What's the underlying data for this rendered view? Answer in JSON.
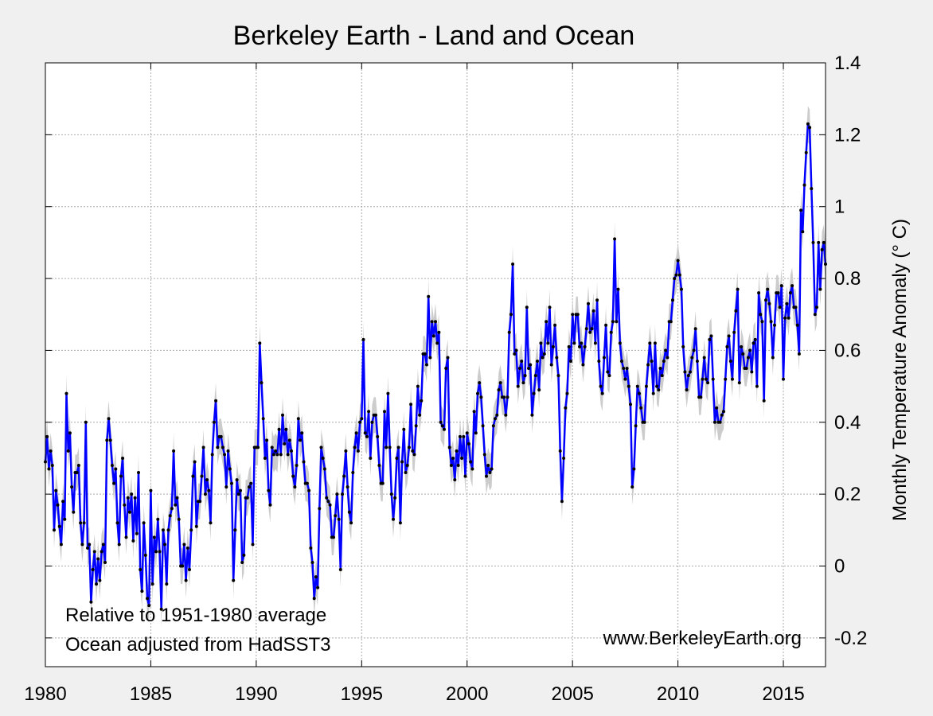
{
  "chart_data": {
    "type": "line",
    "title": "Berkeley Earth - Land and Ocean",
    "xlabel": "",
    "ylabel": "Monthly Temperature Anomaly (° C)",
    "xlim": [
      1980,
      2017
    ],
    "ylim": [
      -0.28,
      1.4
    ],
    "x_ticks": [
      "1980",
      "1985",
      "1990",
      "1995",
      "2000",
      "2005",
      "2010",
      "2015"
    ],
    "y_ticks": [
      "-0.2",
      "0",
      "0.2",
      "0.4",
      "0.6",
      "0.8",
      "1",
      "1.2",
      "1.4"
    ],
    "y_axis_side": "right",
    "grid": true,
    "annotations": [
      "Relative to 1951-1980 average",
      "Ocean adjusted from HadSST3",
      "www.BerkeleyEarth.org"
    ],
    "line_color": "#0000ff",
    "marker_color": "#000000",
    "uncertainty_color": "#cccccc",
    "uncertainty_halfwidth": 0.05,
    "monthly_values_by_year": {
      "1980": [
        0.29,
        0.36,
        0.27,
        0.32,
        0.28,
        0.1,
        0.21,
        0.17,
        0.11,
        0.06,
        0.18,
        0.13
      ],
      "1981": [
        0.48,
        0.32,
        0.37,
        0.22,
        0.15,
        0.26,
        0.26,
        0.28,
        0.12,
        0.06,
        0.12,
        0.4
      ],
      "1982": [
        0.05,
        0.06,
        -0.1,
        -0.01,
        0.04,
        -0.05,
        0.02,
        -0.04,
        0.04,
        0.06,
        0.01,
        0.35
      ],
      "1983": [
        0.41,
        0.35,
        0.28,
        0.23,
        0.27,
        0.12,
        0.06,
        0.25,
        0.3,
        0.17,
        0.08,
        0.19
      ],
      "1984": [
        0.15,
        0.2,
        0.07,
        0.19,
        0.09,
        0.26,
        -0.01,
        -0.07,
        0.12,
        0.03,
        -0.09,
        -0.11
      ],
      "1985": [
        0.21,
        -0.05,
        0.08,
        0.04,
        0.13,
        0.04,
        -0.12,
        0.1,
        0.06,
        -0.05,
        0.1,
        0.14
      ],
      "1986": [
        0.16,
        0.32,
        0.17,
        0.19,
        0.13,
        0.0,
        0.0,
        0.06,
        -0.04,
        0.05,
        -0.01,
        0.1
      ],
      "1987": [
        0.25,
        0.29,
        0.11,
        0.18,
        0.18,
        0.25,
        0.33,
        0.2,
        0.24,
        0.21,
        0.12,
        0.31
      ],
      "1988": [
        0.4,
        0.46,
        0.33,
        0.36,
        0.36,
        0.33,
        0.31,
        0.22,
        0.32,
        0.27,
        0.23,
        -0.04
      ],
      "1989": [
        0.1,
        0.24,
        0.2,
        0.21,
        0.01,
        0.03,
        0.19,
        0.19,
        0.22,
        0.23,
        0.06,
        0.33
      ],
      "1990": [
        0.33,
        0.33,
        0.62,
        0.51,
        0.41,
        0.3,
        0.35,
        0.21,
        0.17,
        0.33,
        0.31,
        0.32
      ],
      "1991": [
        0.31,
        0.38,
        0.31,
        0.42,
        0.34,
        0.38,
        0.31,
        0.35,
        0.32,
        0.25,
        0.22,
        0.28
      ],
      "1992": [
        0.41,
        0.35,
        0.37,
        0.29,
        0.23,
        0.23,
        0.21,
        0.05,
        0.01,
        -0.09,
        -0.03,
        -0.06
      ],
      "1993": [
        0.16,
        0.33,
        0.3,
        0.27,
        0.19,
        0.18,
        0.17,
        0.08,
        0.08,
        0.14,
        0.2,
        0.13
      ],
      "1994": [
        -0.01,
        0.2,
        0.25,
        0.32,
        0.22,
        0.15,
        0.12,
        0.26,
        0.33,
        0.37,
        0.32,
        0.4
      ],
      "1995": [
        0.41,
        0.63,
        0.37,
        0.36,
        0.43,
        0.3,
        0.4,
        0.42,
        0.42,
        0.36,
        0.28,
        0.23
      ],
      "1996": [
        0.23,
        0.43,
        0.33,
        0.48,
        0.33,
        0.2,
        0.13,
        0.19,
        0.3,
        0.33,
        0.12,
        0.29
      ],
      "1997": [
        0.38,
        0.26,
        0.28,
        0.33,
        0.45,
        0.32,
        0.31,
        0.39,
        0.5,
        0.42,
        0.46,
        0.59
      ],
      "1998": [
        0.59,
        0.56,
        0.75,
        0.58,
        0.68,
        0.64,
        0.68,
        0.62,
        0.65,
        0.4,
        0.39,
        0.38
      ],
      "1999": [
        0.55,
        0.58,
        0.33,
        0.28,
        0.3,
        0.24,
        0.32,
        0.28,
        0.36,
        0.3,
        0.36,
        0.25
      ],
      "2000": [
        0.37,
        0.34,
        0.29,
        0.27,
        0.43,
        0.37,
        0.48,
        0.51,
        0.47,
        0.39,
        0.31,
        0.25
      ],
      "2001": [
        0.28,
        0.26,
        0.27,
        0.39,
        0.41,
        0.42,
        0.49,
        0.51,
        0.47,
        0.47,
        0.42,
        0.47
      ],
      "2002": [
        0.65,
        0.7,
        0.84,
        0.59,
        0.6,
        0.5,
        0.55,
        0.57,
        0.51,
        0.53,
        0.72,
        0.55
      ],
      "2003": [
        0.56,
        0.42,
        0.48,
        0.53,
        0.57,
        0.49,
        0.62,
        0.58,
        0.59,
        0.68,
        0.62,
        0.72
      ],
      "2004": [
        0.56,
        0.61,
        0.67,
        0.58,
        0.53,
        0.32,
        0.18,
        0.3,
        0.44,
        0.48,
        0.61,
        0.57
      ],
      "2005": [
        0.7,
        0.62,
        0.7,
        0.7,
        0.61,
        0.62,
        0.56,
        0.61,
        0.66,
        0.73,
        0.65,
        0.66
      ],
      "2006": [
        0.71,
        0.62,
        0.74,
        0.57,
        0.5,
        0.48,
        0.58,
        0.67,
        0.54,
        0.53,
        0.65,
        0.68
      ],
      "2007": [
        0.91,
        0.68,
        0.77,
        0.62,
        0.57,
        0.55,
        0.52,
        0.55,
        0.5,
        0.45,
        0.22,
        0.27
      ],
      "2008": [
        0.39,
        0.5,
        0.48,
        0.44,
        0.4,
        0.4,
        0.5,
        0.56,
        0.62,
        0.57,
        0.48,
        0.62
      ],
      "2009": [
        0.5,
        0.49,
        0.55,
        0.53,
        0.57,
        0.6,
        0.58,
        0.68,
        0.68,
        0.74,
        0.8,
        0.81
      ],
      "2010": [
        0.85,
        0.81,
        0.77,
        0.61,
        0.54,
        0.49,
        0.53,
        0.54,
        0.58,
        0.6,
        0.66,
        0.57
      ],
      "2011": [
        0.47,
        0.47,
        0.52,
        0.58,
        0.52,
        0.51,
        0.63,
        0.64,
        0.52,
        0.4,
        0.44,
        0.4
      ],
      "2012": [
        0.4,
        0.42,
        0.43,
        0.52,
        0.61,
        0.64,
        0.57,
        0.52,
        0.65,
        0.71,
        0.77,
        0.51
      ],
      "2013": [
        0.61,
        0.59,
        0.55,
        0.55,
        0.58,
        0.6,
        0.54,
        0.62,
        0.63,
        0.5,
        0.76,
        0.7
      ],
      "2014": [
        0.68,
        0.46,
        0.74,
        0.77,
        0.73,
        0.68,
        0.58,
        0.67,
        0.76,
        0.76,
        0.72,
        0.78
      ],
      "2015": [
        0.52,
        0.69,
        0.73,
        0.69,
        0.76,
        0.78,
        0.72,
        0.72,
        0.67,
        0.59,
        0.99,
        0.93
      ],
      "2016": [
        1.06,
        1.15,
        1.23,
        1.22,
        1.05,
        0.9,
        0.7,
        0.72,
        0.9,
        0.77,
        0.88,
        0.9
      ],
      "2017": [
        0.84
      ]
    }
  }
}
